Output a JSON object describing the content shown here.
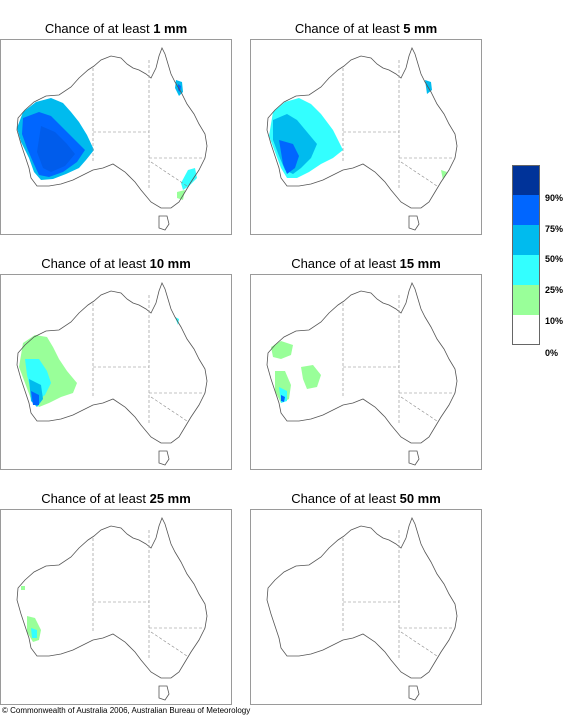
{
  "panels": [
    {
      "prefix": "Chance of at least ",
      "amount": "1 mm"
    },
    {
      "prefix": "Chance of at least ",
      "amount": "5 mm"
    },
    {
      "prefix": "Chance of at least ",
      "amount": "10 mm"
    },
    {
      "prefix": "Chance of at least ",
      "amount": "15 mm"
    },
    {
      "prefix": "Chance of at least ",
      "amount": "25 mm"
    },
    {
      "prefix": "Chance of at least ",
      "amount": "50 mm"
    }
  ],
  "legend": {
    "labels": [
      "90%",
      "75%",
      "50%",
      "25%",
      "10%",
      "0%"
    ],
    "colors": [
      "#003399",
      "#0066ff",
      "#00bbee",
      "#33ffff",
      "#99ff99",
      "#ffffff"
    ]
  },
  "copyright": "© Commonwealth of Australia 2006, Australian Bureau of Meteorology"
}
